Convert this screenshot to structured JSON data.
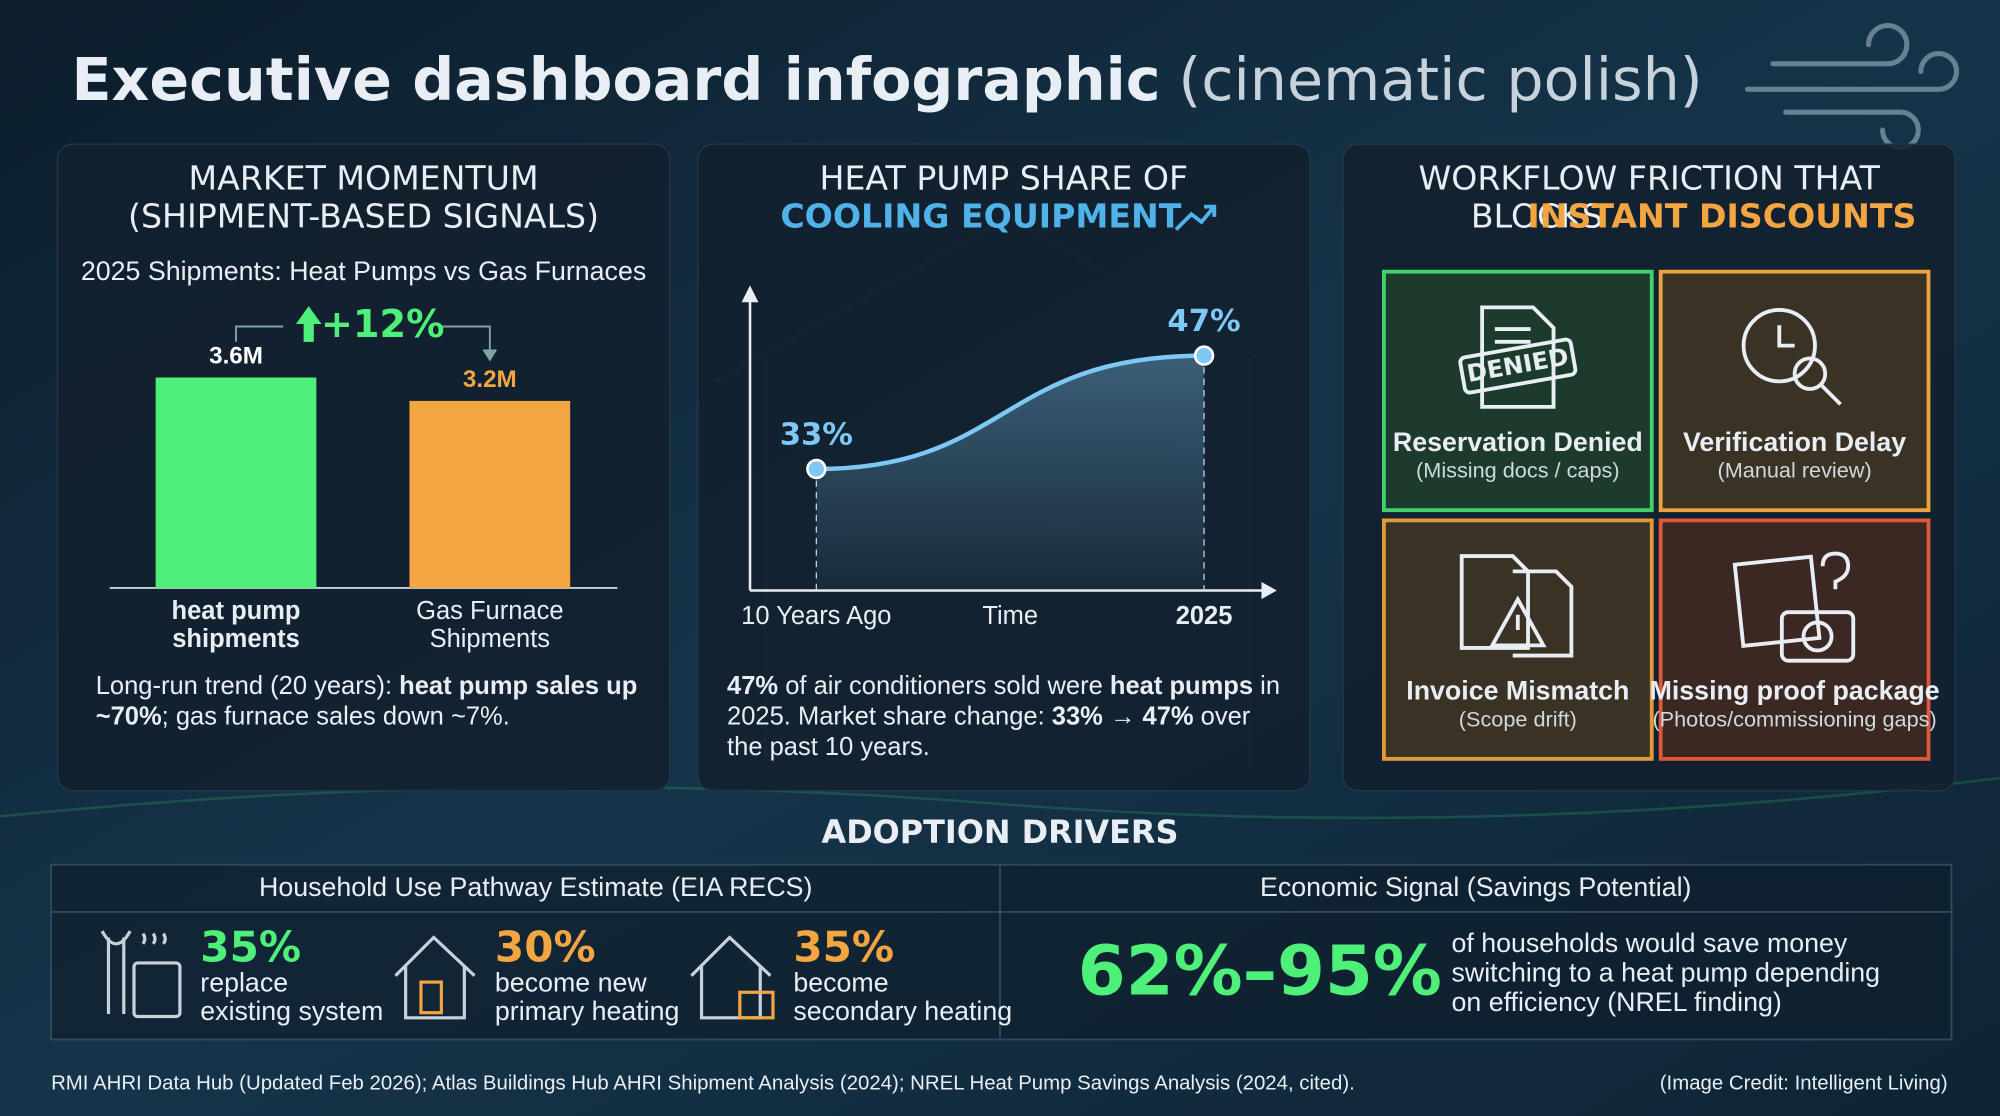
{
  "header": {
    "title": "Executive dashboard infographic",
    "subtitle": "(cinematic polish)"
  },
  "chart_data": [
    {
      "type": "bar",
      "title_lines": [
        "MARKET MOMENTUM",
        "(SHIPMENT-BASED SIGNALS)"
      ],
      "subtitle": "2025 Shipments: Heat Pumps vs Gas Furnaces",
      "annotation": "+12%",
      "categories": [
        [
          "heat pump",
          "shipments"
        ],
        [
          "Gas Furnace",
          "Shipments"
        ]
      ],
      "category_bold": [
        true,
        false
      ],
      "values": [
        3600000,
        3200000
      ],
      "value_labels": [
        "3.6M",
        "3.2M"
      ],
      "colors": [
        "#4ef07a",
        "#f2a541"
      ],
      "label_colors": [
        "#ffffff",
        "#f2a541"
      ],
      "note": [
        {
          "text": "Long-run trend (20 years): ",
          "bold": false
        },
        {
          "text": "heat pump sales up ~70%",
          "bold": true
        },
        {
          "text": "; gas furnace sales down ~7%.",
          "bold": false
        }
      ]
    },
    {
      "type": "line",
      "title_lines": [
        "HEAT PUMP SHARE OF",
        "COOLING EQUIPMENT"
      ],
      "x": [
        "10 Years Ago",
        "2025"
      ],
      "x_label": "Time",
      "values": [
        33,
        47
      ],
      "value_labels": [
        "33%",
        "47%"
      ],
      "ylim": [
        18,
        55
      ],
      "color": "#7ec8f5",
      "note": [
        {
          "text": "47%",
          "bold": true
        },
        {
          "text": " of air conditioners sold were ",
          "bold": false
        },
        {
          "text": "heat pumps",
          "bold": true
        },
        {
          "text": " in 2025. Market share change: ",
          "bold": false
        },
        {
          "text": "33% → 47%",
          "bold": true
        },
        {
          "text": " over the past 10 years.",
          "bold": false
        }
      ]
    }
  ],
  "workflow": {
    "title_lines": [
      "WORKFLOW FRICTION THAT",
      "BLOCKS"
    ],
    "title_highlight": "INSTANT DISCOUNTS",
    "tiles": [
      {
        "label": "Reservation Denied",
        "detail": "(Missing docs / caps)",
        "stamp": "DENIED",
        "color": "#3fd46b"
      },
      {
        "label": "Verification Delay",
        "detail": "(Manual review)",
        "color": "#e9a53f"
      },
      {
        "label": "Invoice Mismatch",
        "detail": "(Scope drift)",
        "color": "#e09a3a"
      },
      {
        "label": "Missing proof package",
        "detail": "(Photos/commissioning gaps)",
        "color": "#e0583a"
      }
    ]
  },
  "adoption": {
    "title": "ADOPTION DRIVERS",
    "left": {
      "header": "Household Use Pathway Estimate (EIA RECS)",
      "items": [
        {
          "value": "35%",
          "lines": [
            "replace",
            "existing system"
          ],
          "color": "#4ef07a"
        },
        {
          "value": "30%",
          "lines": [
            "become new",
            "primary heating"
          ],
          "color": "#f2a541"
        },
        {
          "value": "35%",
          "lines": [
            "become",
            "secondary heating"
          ],
          "color": "#f2a541"
        }
      ]
    },
    "right": {
      "header": "Economic Signal (Savings Potential)",
      "range": "62%–95%",
      "lines": [
        "of households would save money",
        "switching to a heat pump depending",
        "on efficiency (NREL finding)"
      ]
    }
  },
  "footer": {
    "sources": "RMI AHRI Data Hub (Updated Feb 2026); Atlas Buildings Hub AHRI Shipment Analysis (2024); NREL Heat Pump Savings Analysis (2024, cited).",
    "credit": "(Image Credit: Intelligent Living)"
  }
}
